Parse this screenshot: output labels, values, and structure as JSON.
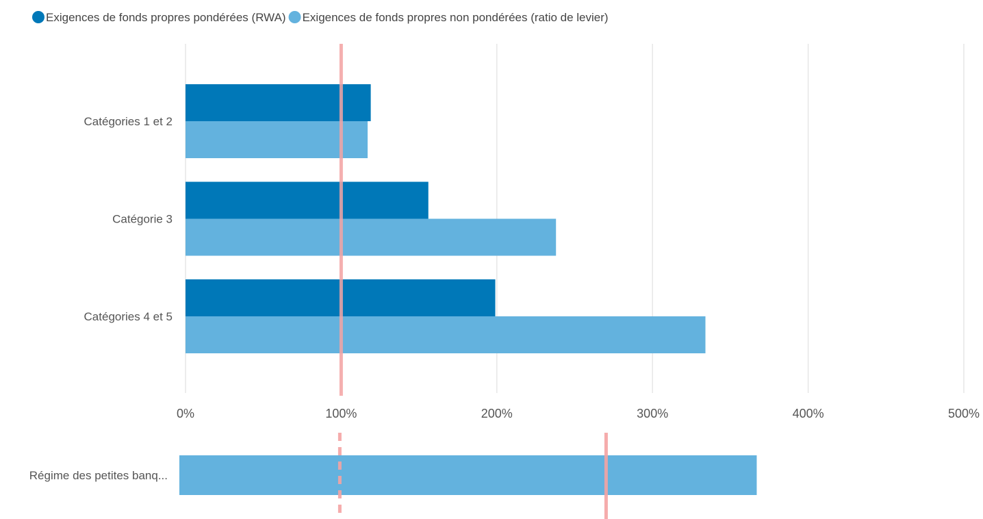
{
  "chart_data": [
    {
      "type": "bar",
      "orientation": "horizontal",
      "categories": [
        "Catégories 1 et 2",
        "Catégorie 3",
        "Catégories 4 et 5"
      ],
      "series": [
        {
          "name": "Exigences de fonds propres pondérées (RWA)",
          "values": [
            119,
            156,
            199
          ],
          "color": "#0078b8"
        },
        {
          "name": "Exigences de fonds propres non pondérées (ratio de levier)",
          "values": [
            117,
            238,
            334
          ],
          "color": "#63b2de"
        }
      ],
      "xlim": [
        0,
        500
      ],
      "xticks": [
        "0%",
        "100%",
        "200%",
        "300%",
        "400%",
        "500%"
      ],
      "reference_line": {
        "value": 100,
        "color": "#f4a3a3",
        "style": "solid"
      },
      "grid": true,
      "legend_position": "top-left"
    },
    {
      "type": "bar",
      "orientation": "horizontal",
      "categories": [
        "Régime des petites banq..."
      ],
      "series": [
        {
          "name": "Exigences de fonds propres non pondérées (ratio de levier)",
          "values": [
            368
          ],
          "color": "#63b2de"
        }
      ],
      "xlim": [
        0,
        500
      ],
      "reference_lines": [
        {
          "value": 100,
          "color": "#f4a3a3",
          "style": "dashed"
        },
        {
          "value": 272,
          "color": "#f4a3a3",
          "style": "solid"
        }
      ],
      "grid": false
    }
  ]
}
